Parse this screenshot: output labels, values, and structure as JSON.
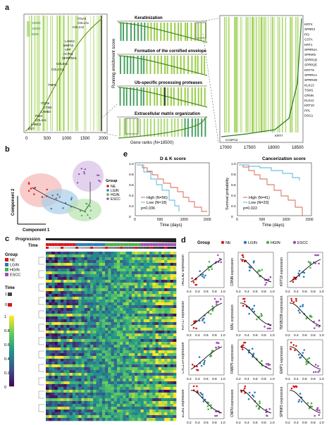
{
  "panels": {
    "a": "a",
    "b": "b",
    "c": "c",
    "d": "d",
    "e": "e"
  },
  "a_left": {
    "xticks": [
      "0",
      "500",
      "1000",
      "1500",
      "2000"
    ],
    "legend_values": [
      "15000",
      "10000",
      "5000"
    ],
    "genes": [
      "ITGA3",
      "COL1A1",
      "COL1A2",
      "LAMA3",
      "MMP14",
      "APP",
      "ACTN1",
      "SERPINH1",
      "COL5A1",
      "COL17A1",
      "TIMP1",
      "ITGA6",
      "CTSD",
      "LAMB3",
      "PLEC",
      "COL4A1",
      "LAMC3",
      "DST"
    ]
  },
  "a_mid": {
    "ylabel": "Running enrichment score",
    "xlabel": "Gene ranks (N=18500)",
    "subtitles": [
      "Keratinization",
      "Formation of the cornified envelope",
      "Ub-specific processing proteases",
      "Extracellular matrix organization"
    ]
  },
  "a_right": {
    "xticks": [
      "17000",
      "17500",
      "18000",
      "18500"
    ],
    "genes": [
      "KRT4",
      "SPRR3",
      "PI3",
      "CSTA",
      "KRT1",
      "SPRR2A",
      "SPINK5",
      "SPRR1B",
      "SPRR2E",
      "KRT76",
      "SPRR1A",
      "SPRR2D",
      "KLK13",
      "TGM1",
      "CRNN",
      "KLK12",
      "KRT10",
      "PPL",
      "DSG1"
    ],
    "bottom_genes": [
      "CASP14",
      "KRT7"
    ]
  },
  "b": {
    "xlabel": "Component 1",
    "ylabel": "Component 2",
    "legend_title": "Group",
    "groups": [
      "NE",
      "LGIN",
      "HGIN",
      "ESCC"
    ]
  },
  "e": {
    "charts": [
      {
        "title": "D & K score",
        "ylabel": "Survival probability",
        "xlabel": "Time (days)",
        "xticks": [
          "0",
          "500",
          "1000",
          "1500"
        ],
        "yticks": [
          "1.0",
          "0.8",
          "0.6",
          "0.4",
          "0.2",
          "0"
        ],
        "legend": [
          "High (N=56)",
          "Low (N=18)"
        ],
        "pval": "p=0.036"
      },
      {
        "title": "Cancerization score",
        "ylabel": "Survival probability",
        "xlabel": "Time (days)",
        "xticks": [
          "0",
          "500",
          "1000",
          "1500"
        ],
        "yticks": [
          "1.0",
          "0.8",
          "0.6",
          "0.4",
          "0.2",
          "0"
        ],
        "legend": [
          "High (N=41)",
          "Low (N=33)"
        ],
        "pval": "p=0.022"
      }
    ]
  },
  "c": {
    "progression_label": "Progression",
    "time_label": "Time",
    "group_title": "Group",
    "groups": [
      "NE",
      "LGIN",
      "HGIN",
      "ESCC"
    ],
    "time_title": "Time",
    "time_ticks": [
      "1",
      "0"
    ],
    "scale_ticks": [
      "1",
      "0.8",
      "0.6",
      "0.4",
      "0.2",
      "0"
    ]
  },
  "d": {
    "group_title": "Group",
    "groups": [
      "NE",
      "LGIN",
      "HGIN",
      "ESCC"
    ],
    "xticks": [
      "0.2",
      "0.4",
      "0.6",
      "0.8",
      "1.0"
    ],
    "genes": [
      "TAGLN2",
      "CRNN",
      "KRT16",
      "KRT17",
      "MAL",
      "TMSB15B",
      "CXCL14",
      "FABP5",
      "EMP1",
      "ECM1",
      "CNFN",
      "SPINK5"
    ]
  },
  "colors": {
    "NE": "#d7191c",
    "LGIN": "#2c7bb6",
    "HGIN": "#4daf4a",
    "ESCC": "#9e4fb5",
    "high": "#d6604d",
    "low": "#4eb3d3",
    "gsea": "#7fc31c"
  }
}
